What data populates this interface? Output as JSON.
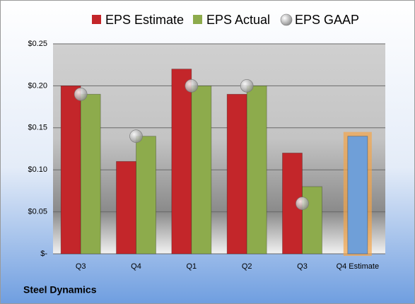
{
  "chart_data": {
    "type": "bar",
    "title": "Steel Dynamics",
    "categories": [
      "Q3",
      "Q4",
      "Q1",
      "Q2",
      "Q3",
      "Q4 Estimate"
    ],
    "series": [
      {
        "name": "EPS Estimate",
        "color": "#c3262a",
        "values": [
          0.2,
          0.11,
          0.22,
          0.19,
          0.12,
          0.14
        ],
        "colors": [
          "#c3262a",
          "#c3262a",
          "#c3262a",
          "#c3262a",
          "#c3262a",
          "#6f9fd8"
        ]
      },
      {
        "name": "EPS Actual",
        "color": "#8dab4c",
        "values": [
          0.19,
          0.14,
          0.2,
          0.2,
          0.08,
          null
        ]
      },
      {
        "name": "EPS GAAP",
        "color": "#b8b8b8",
        "marker": "circle",
        "values": [
          0.19,
          0.14,
          0.2,
          0.2,
          0.06,
          null
        ]
      }
    ],
    "highlight_color": "#f3a54a",
    "ylim": [
      0,
      0.25
    ],
    "yticks": [
      {
        "value": 0,
        "label": "$-"
      },
      {
        "value": 0.05,
        "label": "$0.05"
      },
      {
        "value": 0.1,
        "label": "$0.10"
      },
      {
        "value": 0.15,
        "label": "$0.15"
      },
      {
        "value": 0.2,
        "label": "$0.20"
      },
      {
        "value": 0.25,
        "label": "$0.25"
      }
    ],
    "grid": true
  }
}
